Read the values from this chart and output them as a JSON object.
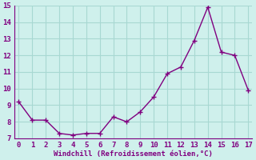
{
  "x": [
    0,
    1,
    2,
    3,
    4,
    5,
    6,
    7,
    8,
    9,
    10,
    11,
    12,
    13,
    14,
    15,
    16,
    17
  ],
  "y": [
    9.2,
    8.1,
    8.1,
    7.3,
    7.2,
    7.3,
    7.3,
    8.3,
    8.0,
    8.6,
    9.5,
    10.9,
    11.3,
    12.9,
    14.9,
    12.2,
    12.0,
    9.9
  ],
  "line_color": "#800080",
  "marker": "+",
  "marker_size": 4,
  "xlabel": "Windchill (Refroidissement éolien,°C)",
  "xlim": [
    -0.3,
    17.3
  ],
  "ylim": [
    7,
    15
  ],
  "yticks": [
    7,
    8,
    9,
    10,
    11,
    12,
    13,
    14,
    15
  ],
  "xticks": [
    0,
    1,
    2,
    3,
    4,
    5,
    6,
    7,
    8,
    9,
    10,
    11,
    12,
    13,
    14,
    15,
    16,
    17
  ],
  "bg_color": "#cff0ec",
  "grid_color": "#a8d8d2",
  "tick_color": "#800080",
  "label_color": "#800080",
  "line_width": 1.0
}
